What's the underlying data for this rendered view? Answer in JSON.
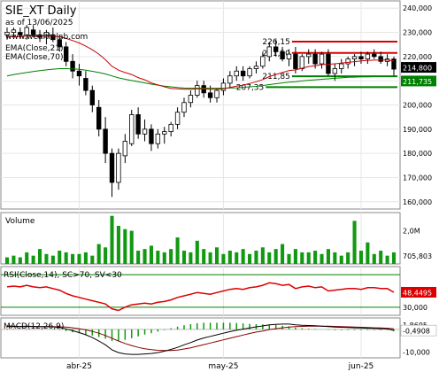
{
  "header": {
    "title": "SIE_XT Daily",
    "subtitle": "as of 13/06/2025",
    "website": "www.wealth-lab.com"
  },
  "colors": {
    "up_candle": "#ffffff",
    "down_candle": "#000000",
    "ema21": "#cc0000",
    "ema70": "#008000",
    "resistance": "#dd0000",
    "support": "#008000",
    "volume": "#119911",
    "rsi": "#dd0000",
    "rsi_band": "#008000",
    "macd": "#000000",
    "macd_signal": "#880000",
    "macd_hist": "#119911",
    "last_price_badge": "#000000",
    "ema_badge": "#008000",
    "rsi_badge": "#dd0000"
  },
  "chart_data": [
    {
      "type": "candlestick",
      "id": "price",
      "ylim": [
        157,
        243
      ],
      "yticks": [
        "240,000",
        "230,000",
        "220,000",
        "210,000",
        "200,000",
        "190,000",
        "180,000",
        "170,000",
        "160,000"
      ],
      "ytick_values": [
        240,
        230,
        220,
        210,
        200,
        190,
        180,
        170,
        160
      ],
      "legend": [
        "EMA(Close,21)",
        "EMA(Close,70)"
      ],
      "last_price": "214,800",
      "ema_value": "211,735",
      "x_labels": [
        {
          "label": "abr-25",
          "index": 11
        },
        {
          "label": "may-25",
          "index": 33
        },
        {
          "label": "jun-25",
          "index": 54
        }
      ],
      "levels": [
        {
          "label": "226,15",
          "value": 226.15,
          "type": "resistance",
          "from": 44
        },
        {
          "label": "221,50",
          "value": 221.5,
          "type": "resistance",
          "from": 44
        },
        {
          "label": "211,85",
          "value": 211.85,
          "type": "support",
          "from": 44
        },
        {
          "label": "207,35",
          "value": 207.35,
          "type": "support",
          "from": 40
        }
      ],
      "ohlc": [
        [
          229,
          232,
          227,
          230
        ],
        [
          230,
          232,
          228,
          231
        ],
        [
          230,
          232,
          228,
          229
        ],
        [
          229,
          233,
          227,
          232
        ],
        [
          231,
          233,
          228,
          229
        ],
        [
          229,
          231,
          226,
          228
        ],
        [
          228,
          231,
          225,
          230
        ],
        [
          229,
          232,
          226,
          227
        ],
        [
          227,
          229,
          222,
          224
        ],
        [
          224,
          226,
          216,
          218
        ],
        [
          218,
          221,
          211,
          214
        ],
        [
          214,
          217,
          208,
          212
        ],
        [
          211,
          214,
          204,
          206
        ],
        [
          206,
          208,
          197,
          200
        ],
        [
          199,
          202,
          187,
          190
        ],
        [
          190,
          195,
          176,
          180
        ],
        [
          180,
          182,
          162,
          168
        ],
        [
          168,
          182,
          165,
          180
        ],
        [
          179,
          188,
          176,
          185
        ],
        [
          184,
          198,
          183,
          196
        ],
        [
          196,
          199,
          186,
          188
        ],
        [
          188,
          194,
          185,
          190
        ],
        [
          190,
          192,
          181,
          184
        ],
        [
          184,
          190,
          182,
          188
        ],
        [
          188,
          191,
          184,
          189
        ],
        [
          189,
          193,
          187,
          192
        ],
        [
          192,
          199,
          190,
          197
        ],
        [
          197,
          203,
          195,
          201
        ],
        [
          201,
          206,
          199,
          204
        ],
        [
          204,
          210,
          203,
          208
        ],
        [
          208,
          210,
          203,
          205
        ],
        [
          205,
          208,
          201,
          203
        ],
        [
          203,
          207,
          201,
          206
        ],
        [
          206,
          211,
          204,
          209
        ],
        [
          209,
          214,
          207,
          212
        ],
        [
          212,
          216,
          210,
          214
        ],
        [
          214,
          216,
          210,
          212
        ],
        [
          212,
          216,
          211,
          215
        ],
        [
          215,
          218,
          213,
          216
        ],
        [
          216,
          222,
          215,
          220
        ],
        [
          220,
          226,
          218,
          224
        ],
        [
          224,
          227,
          220,
          222
        ],
        [
          222,
          224,
          218,
          219
        ],
        [
          219,
          223,
          216,
          221
        ],
        [
          221,
          224,
          213,
          215
        ],
        [
          215,
          221,
          214,
          220
        ],
        [
          220,
          223,
          217,
          221
        ],
        [
          221,
          223,
          215,
          217
        ],
        [
          217,
          222,
          215,
          221
        ],
        [
          221,
          223,
          212,
          213
        ],
        [
          213,
          217,
          210,
          215
        ],
        [
          215,
          219,
          213,
          217
        ],
        [
          217,
          220,
          215,
          219
        ],
        [
          219,
          221,
          216,
          220
        ],
        [
          220,
          222,
          217,
          219
        ],
        [
          219,
          222,
          217,
          221
        ],
        [
          221,
          223,
          219,
          220
        ],
        [
          220,
          222,
          217,
          218
        ],
        [
          218,
          221,
          216,
          219
        ],
        [
          219,
          220,
          212,
          214.8
        ]
      ],
      "ema21": [
        228,
        228.2,
        228.2,
        228.5,
        228.6,
        228.5,
        228.6,
        228.5,
        228.2,
        227.5,
        226.6,
        225.6,
        224.3,
        222.8,
        221,
        218.7,
        216,
        214.4,
        213.4,
        212.6,
        211.3,
        210.4,
        209.1,
        208.3,
        207.5,
        206.8,
        206.7,
        206.5,
        206.5,
        206.7,
        206.6,
        206.5,
        206.5,
        206.7,
        207.2,
        207.8,
        208.2,
        208.9,
        209.6,
        210.5,
        211.7,
        212.6,
        213.4,
        214.2,
        214.5,
        215.2,
        215.9,
        216.2,
        216.7,
        216.8,
        217.0,
        217.3,
        217.6,
        217.9,
        218.2,
        218.4,
        218.5,
        218.6,
        218.6,
        218.2
      ],
      "ema70": [
        212,
        212.5,
        213,
        213.4,
        213.8,
        214.2,
        214.5,
        214.8,
        215,
        215,
        214.9,
        214.7,
        214.4,
        213.9,
        213.4,
        212.8,
        212,
        211.2,
        210.6,
        210.1,
        209.6,
        209.1,
        208.6,
        208.2,
        207.8,
        207.5,
        207.2,
        207,
        206.9,
        206.9,
        206.9,
        206.9,
        206.9,
        206.9,
        207,
        207.1,
        207.3,
        207.5,
        207.7,
        208,
        208.4,
        208.8,
        209.1,
        209.4,
        209.6,
        209.9,
        210.2,
        210.4,
        210.6,
        210.8,
        211,
        211.2,
        211.4,
        211.5,
        211.6,
        211.6,
        211.7,
        211.7,
        211.7,
        211.735
      ]
    },
    {
      "type": "bar",
      "id": "volume",
      "title": "Volume",
      "ylim": [
        0,
        3.1
      ],
      "yticks": [
        "2,0M"
      ],
      "ytick_values": [
        2.0
      ],
      "last_value": "705,803",
      "values": [
        0.4,
        0.5,
        0.4,
        0.7,
        0.5,
        0.9,
        0.6,
        0.5,
        0.8,
        0.7,
        0.6,
        0.6,
        0.7,
        0.5,
        1.2,
        1.0,
        2.9,
        2.3,
        2.1,
        2.0,
        0.8,
        0.9,
        1.1,
        0.8,
        0.7,
        0.9,
        1.6,
        0.8,
        0.7,
        1.4,
        0.9,
        0.7,
        1.0,
        0.6,
        0.8,
        0.7,
        0.9,
        0.6,
        0.8,
        1.0,
        0.7,
        0.9,
        1.2,
        0.6,
        0.9,
        0.7,
        0.7,
        0.8,
        0.6,
        0.9,
        0.7,
        0.5,
        0.7,
        2.6,
        0.8,
        1.3,
        0.6,
        0.8,
        0.5,
        0.7
      ]
    },
    {
      "type": "line",
      "id": "rsi",
      "title": "RSI(Close,14), SC>70, SV<30",
      "ylim": [
        20,
        80
      ],
      "bands": [
        30,
        70
      ],
      "yticks": [
        "30,000"
      ],
      "ytick_values": [
        30
      ],
      "last_value": "48,4495",
      "values": [
        55,
        56,
        55,
        57,
        55,
        54,
        55,
        53,
        51,
        47,
        44,
        42,
        40,
        38,
        36,
        34,
        28,
        26,
        30,
        33,
        34,
        35,
        34,
        36,
        37,
        39,
        42,
        44,
        46,
        48,
        47,
        46,
        48,
        50,
        52,
        53,
        52,
        54,
        55,
        57,
        60,
        59,
        57,
        58,
        53,
        55,
        56,
        54,
        55,
        50,
        51,
        52,
        53,
        53,
        52,
        54,
        54,
        53,
        53,
        48.4
      ]
    },
    {
      "type": "line",
      "id": "macd",
      "title": "MACD(12,26,9)",
      "ylim": [
        -12.5,
        5
      ],
      "yticks": [
        "-10,000"
      ],
      "ytick_values": [
        -10
      ],
      "last_value": "-0,4908",
      "last_label_top": "1,8695",
      "macd": [
        1.5,
        1.4,
        1.3,
        1.4,
        1.3,
        1.2,
        1.2,
        1.1,
        0.8,
        0.2,
        -0.6,
        -1.4,
        -2.4,
        -3.6,
        -5.1,
        -6.8,
        -9,
        -10.2,
        -10.8,
        -11,
        -11,
        -10.8,
        -10.6,
        -10.2,
        -9.6,
        -8.8,
        -7.9,
        -6.8,
        -5.8,
        -4.7,
        -3.8,
        -3.1,
        -2.4,
        -1.7,
        -1,
        -0.4,
        0.1,
        0.6,
        1.1,
        1.5,
        2,
        2.2,
        2.3,
        2.3,
        2,
        1.8,
        1.7,
        1.6,
        1.4,
        1.2,
        1,
        0.9,
        0.8,
        0.7,
        0.6,
        0.5,
        0.4,
        0.3,
        0.2,
        -0.49
      ],
      "signal": [
        1.2,
        1.2,
        1.2,
        1.2,
        1.2,
        1.2,
        1.2,
        1.2,
        1.1,
        1,
        0.7,
        0.3,
        -0.2,
        -0.9,
        -1.7,
        -2.7,
        -3.9,
        -5.1,
        -6.2,
        -7.1,
        -7.9,
        -8.5,
        -8.9,
        -9.2,
        -9.3,
        -9.3,
        -9.1,
        -8.6,
        -8.1,
        -7.4,
        -6.7,
        -6,
        -5.3,
        -4.6,
        -3.9,
        -3.2,
        -2.5,
        -1.8,
        -1.2,
        -0.7,
        -0.1,
        0.3,
        0.7,
        1,
        1.2,
        1.3,
        1.4,
        1.4,
        1.4,
        1.4,
        1.3,
        1.2,
        1.1,
        1,
        0.9,
        0.8,
        0.7,
        0.6,
        0.5,
        0.3
      ]
    }
  ]
}
